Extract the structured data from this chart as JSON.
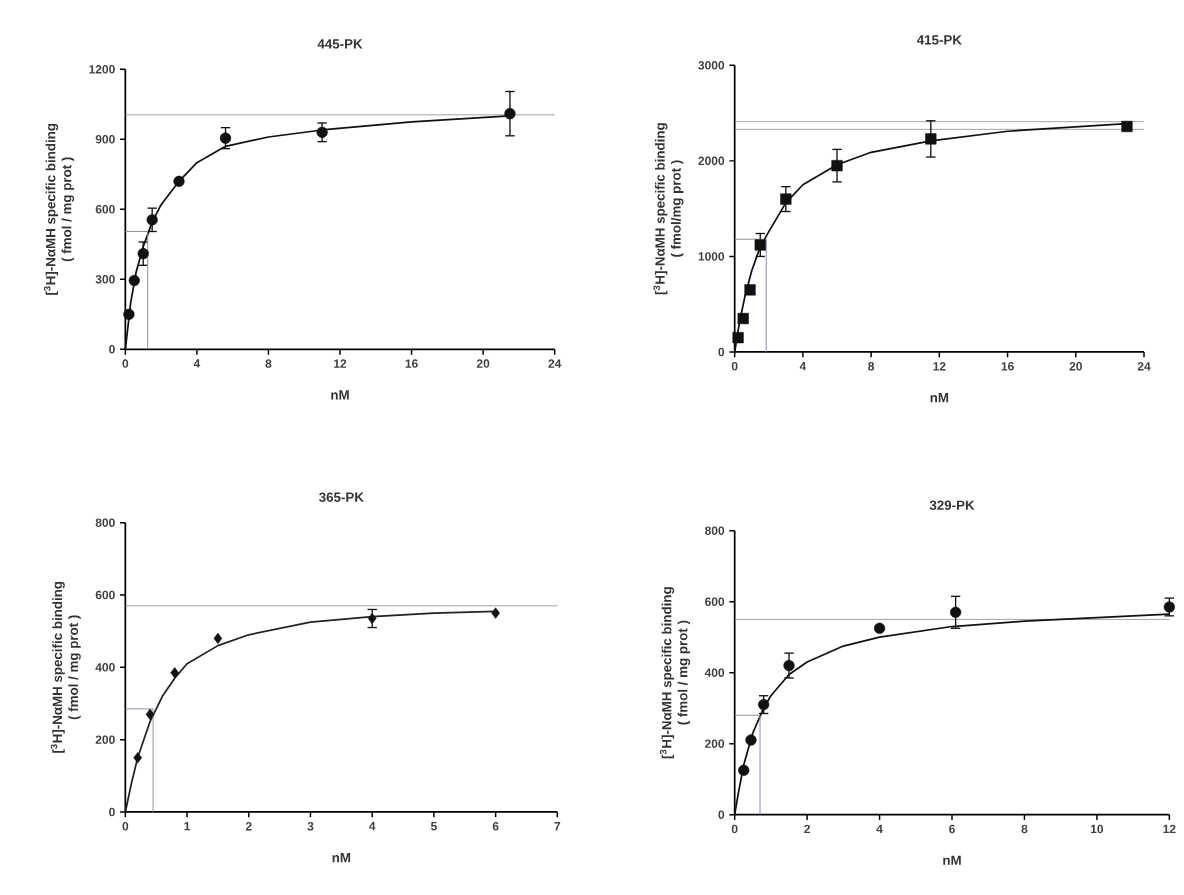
{
  "chart_data": [
    {
      "type": "scatter",
      "title": "445-PK",
      "xlabel": "nM",
      "ylabel": "[$^{3}$H]-NαMH specific binding\n( fmol / mg prot )",
      "xlim": [
        0,
        24
      ],
      "ylim": [
        0,
        1200
      ],
      "xticks": [
        0,
        4,
        8,
        12,
        16,
        20,
        24
      ],
      "yticks": [
        0,
        300,
        600,
        900,
        1200
      ],
      "series": [
        {
          "marker": "circle",
          "color": "#111111",
          "x": [
            0.2,
            0.5,
            1,
            1.5,
            3,
            5.6,
            11,
            21.5
          ],
          "values": [
            150,
            295,
            410,
            555,
            720,
            905,
            930,
            1010
          ],
          "errors": [
            null,
            null,
            50,
            50,
            null,
            45,
            40,
            95
          ]
        },
        {
          "type": "line",
          "color": "#111111",
          "x": [
            0,
            0.3,
            0.6,
            1,
            1.5,
            2,
            3,
            4,
            5.6,
            8,
            11,
            16,
            21.5
          ],
          "values": [
            0,
            200,
            330,
            440,
            545,
            620,
            720,
            800,
            870,
            910,
            940,
            975,
            1000
          ]
        },
        {
          "type": "line",
          "color": "#8088b0",
          "x": [
            0,
            1.25,
            1.25
          ],
          "values": [
            505,
            505,
            0
          ]
        }
      ],
      "ref_lines": [
        {
          "axis": "y",
          "value": 1005,
          "color": "#8c8c8c"
        }
      ]
    },
    {
      "type": "scatter",
      "title": "415-PK",
      "xlabel": "nM",
      "ylabel": "[$^{3}$H]-NαMH specific binding\n( fmol/mg prot )",
      "xlim": [
        0,
        24
      ],
      "ylim": [
        0,
        3000
      ],
      "xticks": [
        0,
        4,
        8,
        12,
        16,
        20,
        24
      ],
      "yticks": [
        0,
        1000,
        2000,
        3000
      ],
      "series": [
        {
          "marker": "square",
          "color": "#111111",
          "x": [
            0.2,
            0.5,
            0.9,
            1.5,
            3,
            6,
            11.5,
            23
          ],
          "values": [
            150,
            350,
            650,
            1120,
            1600,
            1950,
            2230,
            2360
          ],
          "errors": [
            null,
            null,
            null,
            120,
            130,
            170,
            190,
            null
          ]
        },
        {
          "type": "line",
          "color": "#111111",
          "x": [
            0,
            0.3,
            0.6,
            1,
            1.5,
            2,
            3,
            4,
            6,
            8,
            11.5,
            16,
            23
          ],
          "values": [
            0,
            330,
            580,
            850,
            1100,
            1260,
            1560,
            1750,
            1960,
            2090,
            2210,
            2310,
            2390
          ]
        },
        {
          "type": "line",
          "color": "#8088b0",
          "x": [
            0,
            1.85,
            1.85
          ],
          "values": [
            1180,
            1180,
            0
          ]
        }
      ],
      "ref_lines": [
        {
          "axis": "y",
          "value": 2410,
          "color": "#8c8c8c"
        },
        {
          "axis": "y",
          "value": 2330,
          "color": "#8c8c8c"
        }
      ]
    },
    {
      "type": "scatter",
      "title": "365-PK",
      "xlabel": "nM",
      "ylabel": "[$^{3}$H]-NαMH specific binding\n( fmol / mg prot )",
      "xlim": [
        0,
        7
      ],
      "ylim": [
        0,
        800
      ],
      "xticks": [
        0,
        1,
        2,
        3,
        4,
        5,
        6,
        7
      ],
      "yticks": [
        0,
        200,
        400,
        600,
        800
      ],
      "series": [
        {
          "marker": "diamond",
          "color": "#111111",
          "x": [
            0.2,
            0.4,
            0.8,
            1.5,
            4,
            6
          ],
          "values": [
            150,
            270,
            385,
            480,
            535,
            550
          ],
          "errors": [
            null,
            null,
            null,
            null,
            25,
            null
          ]
        },
        {
          "type": "line",
          "color": "#222222",
          "x": [
            0,
            0.1,
            0.2,
            0.4,
            0.6,
            0.8,
            1,
            1.5,
            2,
            3,
            4,
            5,
            6
          ],
          "values": [
            0,
            80,
            150,
            250,
            320,
            370,
            410,
            460,
            490,
            525,
            540,
            550,
            555
          ]
        },
        {
          "type": "line",
          "color": "#8088b0",
          "x": [
            0,
            0.45,
            0.45
          ],
          "values": [
            285,
            285,
            0
          ]
        }
      ],
      "ref_lines": [
        {
          "axis": "y",
          "value": 570,
          "color": "#8c8c8c"
        }
      ]
    },
    {
      "type": "scatter",
      "title": "329-PK",
      "xlabel": "nM",
      "ylabel": "[$^{3}$H]-NαMH specific binding\n( fmol / mg prot )",
      "xlim": [
        0,
        12
      ],
      "ylim": [
        0,
        800
      ],
      "xticks": [
        0,
        2,
        4,
        6,
        8,
        10,
        12
      ],
      "yticks": [
        0,
        200,
        400,
        600,
        800
      ],
      "series": [
        {
          "marker": "circle",
          "color": "#111111",
          "x": [
            0.25,
            0.45,
            0.8,
            1.5,
            4,
            6.1,
            12
          ],
          "values": [
            125,
            210,
            310,
            420,
            525,
            570,
            585
          ],
          "errors": [
            null,
            null,
            25,
            35,
            null,
            45,
            25
          ]
        },
        {
          "type": "line",
          "color": "#111111",
          "x": [
            0,
            0.1,
            0.25,
            0.5,
            0.8,
            1,
            1.5,
            2,
            3,
            4,
            6,
            8,
            12
          ],
          "values": [
            0,
            60,
            140,
            230,
            300,
            335,
            395,
            430,
            475,
            500,
            530,
            545,
            565
          ]
        },
        {
          "type": "line",
          "color": "#8088b0",
          "x": [
            0,
            0.7,
            0.7
          ],
          "values": [
            280,
            280,
            0
          ]
        }
      ],
      "ref_lines": [
        {
          "axis": "y",
          "value": 550,
          "color": "#8c8c8c"
        }
      ]
    }
  ]
}
